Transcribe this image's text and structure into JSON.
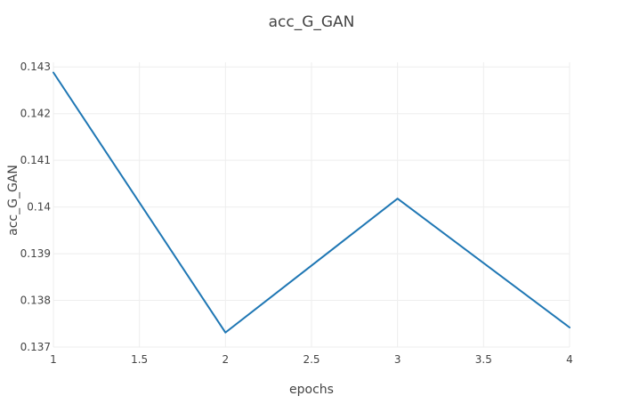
{
  "chart_data": {
    "type": "line",
    "title": "acc_G_GAN",
    "xlabel": "epochs",
    "ylabel": "acc_G_GAN",
    "xlim": [
      1,
      4
    ],
    "ylim": [
      0.137,
      0.1431
    ],
    "xticks": [
      1,
      1.5,
      2,
      2.5,
      3,
      3.5,
      4
    ],
    "xtick_labels": [
      "1",
      "1.5",
      "2",
      "2.5",
      "3",
      "3.5",
      "4"
    ],
    "yticks": [
      0.137,
      0.138,
      0.139,
      0.14,
      0.141,
      0.142,
      0.143
    ],
    "ytick_labels": [
      "0.137",
      "0.138",
      "0.139",
      "0.14",
      "0.141",
      "0.142",
      "0.143"
    ],
    "grid": true,
    "legend": "none",
    "series": [
      {
        "color": "#1f77b4",
        "x": [
          1,
          2,
          3,
          4
        ],
        "y": [
          0.14288,
          0.13731,
          0.14018,
          0.13742
        ]
      }
    ]
  }
}
